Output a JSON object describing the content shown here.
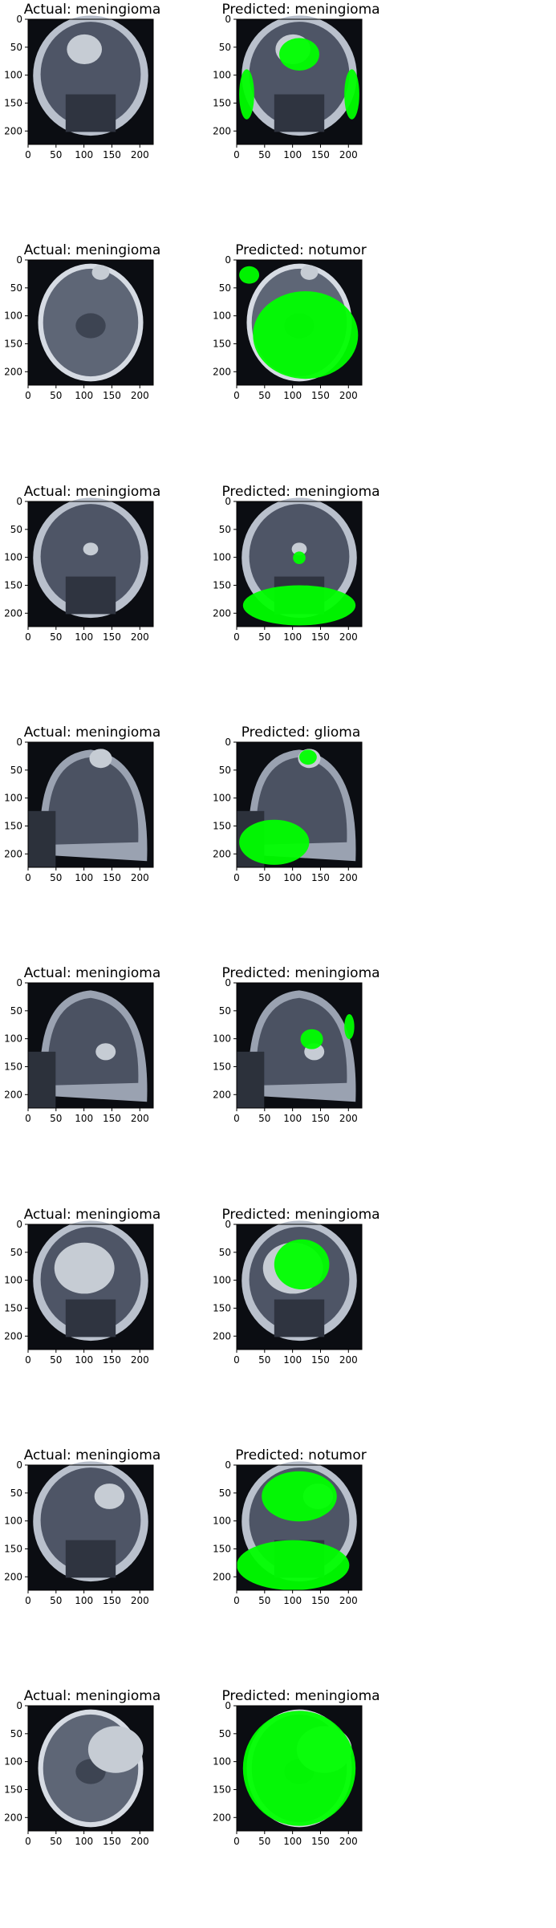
{
  "figure": {
    "axis_ticks": {
      "x": [
        "0",
        "50",
        "100",
        "150",
        "200"
      ],
      "y": [
        "0",
        "50",
        "100",
        "150",
        "200"
      ]
    },
    "overlay_color": "#00ff00",
    "rows": [
      {
        "actual": "Actual: meningioma",
        "predicted": "Predicted: meningioma",
        "view": "coronal"
      },
      {
        "actual": "Actual: meningioma",
        "predicted": "Predicted: notumor",
        "view": "axial"
      },
      {
        "actual": "Actual: meningioma",
        "predicted": "Predicted: meningioma",
        "view": "coronal"
      },
      {
        "actual": "Actual: meningioma",
        "predicted": "Predicted: glioma",
        "view": "sagittal"
      },
      {
        "actual": "Actual: meningioma",
        "predicted": "Predicted: meningioma",
        "view": "sagittal"
      },
      {
        "actual": "Actual: meningioma",
        "predicted": "Predicted: meningioma",
        "view": "coronal"
      },
      {
        "actual": "Actual: meningioma",
        "predicted": "Predicted: notumor",
        "view": "coronal"
      },
      {
        "actual": "Actual: meningioma",
        "predicted": "Predicted: meningioma",
        "view": "axial"
      }
    ]
  }
}
